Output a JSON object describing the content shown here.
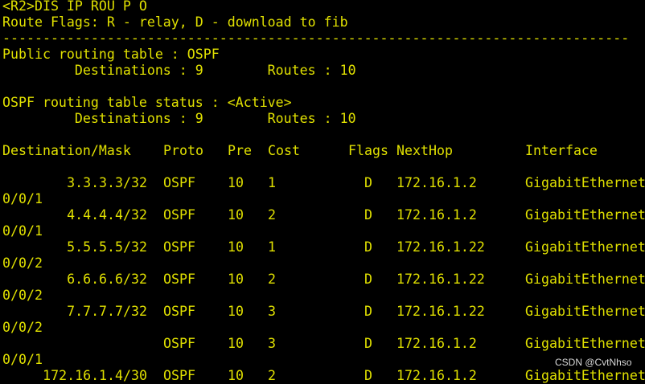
{
  "terminal": {
    "command_line": "<R2>DIS IP ROU P O",
    "flags_legend": "Route Flags: R - relay, D - download to fib",
    "separator": "------------------------------------------------------------------------------",
    "public_table_title": "Public routing table : OSPF",
    "public_summary": "         Destinations : 9        Routes : 10",
    "status_title": "OSPF routing table status : <Active>",
    "status_summary": "         Destinations : 9        Routes : 10",
    "columns": {
      "dest": "Destination/Mask",
      "proto": "Proto",
      "pre": "Pre",
      "cost": "Cost",
      "flags": "Flags",
      "nexthop": "NextHop",
      "iface": "Interface"
    },
    "rows": [
      {
        "dest": "3.3.3.3/32",
        "proto": "OSPF",
        "pre": "10",
        "cost": "1",
        "flags": "D",
        "nexthop": "172.16.1.2",
        "iface": "GigabitEthernet",
        "iface_cont": "0/0/1"
      },
      {
        "dest": "4.4.4.4/32",
        "proto": "OSPF",
        "pre": "10",
        "cost": "2",
        "flags": "D",
        "nexthop": "172.16.1.2",
        "iface": "GigabitEthernet",
        "iface_cont": "0/0/1"
      },
      {
        "dest": "5.5.5.5/32",
        "proto": "OSPF",
        "pre": "10",
        "cost": "1",
        "flags": "D",
        "nexthop": "172.16.1.22",
        "iface": "GigabitEthernet",
        "iface_cont": "0/0/2"
      },
      {
        "dest": "6.6.6.6/32",
        "proto": "OSPF",
        "pre": "10",
        "cost": "2",
        "flags": "D",
        "nexthop": "172.16.1.22",
        "iface": "GigabitEthernet",
        "iface_cont": "0/0/2"
      },
      {
        "dest": "7.7.7.7/32",
        "proto": "OSPF",
        "pre": "10",
        "cost": "3",
        "flags": "D",
        "nexthop": "172.16.1.22",
        "iface": "GigabitEthernet",
        "iface_cont": "0/0/2"
      },
      {
        "dest": "",
        "proto": "OSPF",
        "pre": "10",
        "cost": "3",
        "flags": "D",
        "nexthop": "172.16.1.2",
        "iface": "GigabitEthernet",
        "iface_cont": "0/0/1"
      },
      {
        "dest": "172.16.1.4/30",
        "proto": "OSPF",
        "pre": "10",
        "cost": "2",
        "flags": "D",
        "nexthop": "172.16.1.2",
        "iface": "GigabitEthernet",
        "iface_cont": ""
      }
    ]
  },
  "watermark": "CSDN @CvtNhso"
}
